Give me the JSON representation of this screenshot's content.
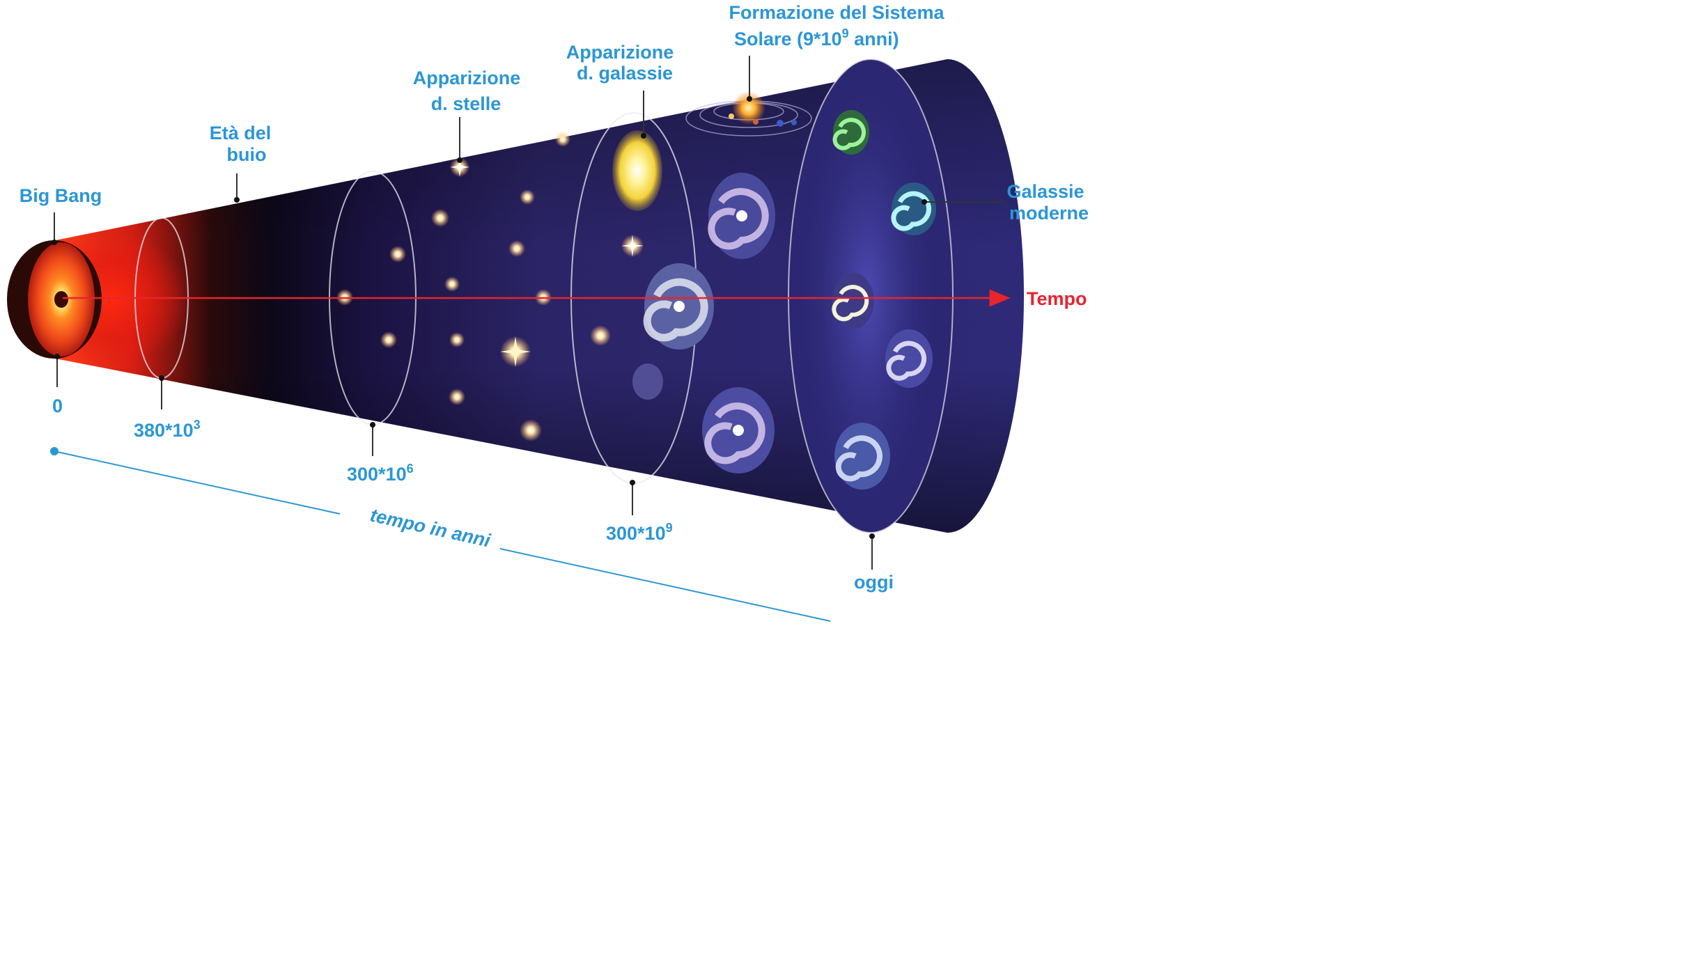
{
  "labels": {
    "big_bang": "Big Bang",
    "eta_buio_1": "Età del",
    "eta_buio_2": "buio",
    "stelle_1": "Apparizione",
    "stelle_2": "d. stelle",
    "galassie_1": "Apparizione",
    "galassie_2": "d. galassie",
    "sistema_1": "Formazione del Sistema",
    "sistema_2_a": "Solare (9*10",
    "sistema_2_exp": "9",
    "sistema_2_b": " anni)",
    "moderne_1": "Galassie",
    "moderne_2": "moderne",
    "tempo": "Tempo"
  },
  "time_axis": {
    "title": "tempo in anni",
    "t0": "0",
    "t1_base": "380*10",
    "t1_exp": "3",
    "t2_base": "300*10",
    "t2_exp": "6",
    "t3_base": "300*10",
    "t3_exp": "9",
    "t4": "oggi"
  },
  "colors": {
    "label_blue": "#2b96d6",
    "arrow_red": "#e8242e",
    "cone_dark": "#2a2470"
  }
}
